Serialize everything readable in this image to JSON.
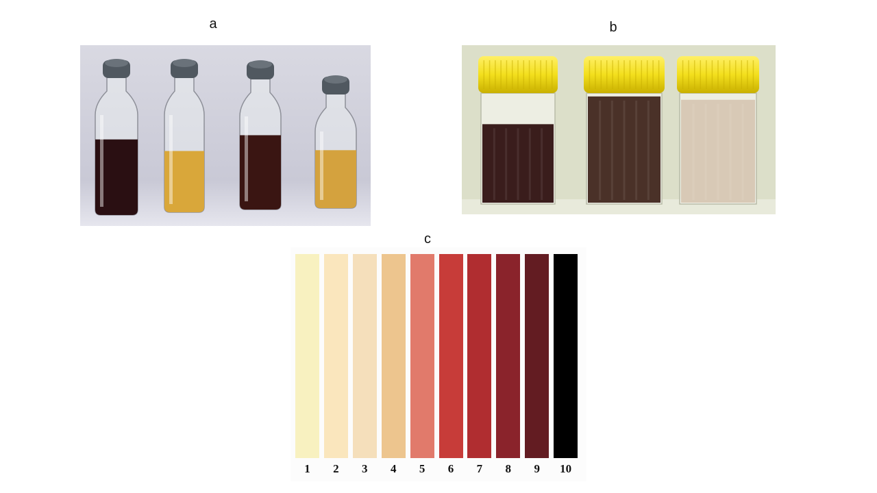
{
  "panels": {
    "a": {
      "label": "a"
    },
    "b": {
      "label": "b"
    },
    "c": {
      "label": "c"
    }
  },
  "photo_a": {
    "background": "#c9c9d6",
    "bottles": [
      {
        "liquid_color": "#2a0f12",
        "fill": 0.36
      },
      {
        "liquid_color": "#d9a73a",
        "fill": 0.3
      },
      {
        "liquid_color": "#3a1512",
        "fill": 0.38
      },
      {
        "liquid_color": "#d4a23e",
        "fill": 0.36
      }
    ]
  },
  "photo_b": {
    "background": "#dcdfc9",
    "cap_color": "#f3df1d",
    "jars": [
      {
        "liquid_color": "#3a1d1c",
        "fill": 0.72
      },
      {
        "liquid_color": "#4a3128",
        "fill": 0.97
      },
      {
        "liquid_color": "#d8c9b6",
        "fill": 0.94
      }
    ]
  },
  "color_scale": {
    "swatches": [
      {
        "number": "1",
        "color": "#f8f1c0"
      },
      {
        "number": "2",
        "color": "#fae6bd"
      },
      {
        "number": "3",
        "color": "#f5dfbb"
      },
      {
        "number": "4",
        "color": "#edc58e"
      },
      {
        "number": "5",
        "color": "#e17a6b"
      },
      {
        "number": "6",
        "color": "#c73c39"
      },
      {
        "number": "7",
        "color": "#b02d30"
      },
      {
        "number": "8",
        "color": "#8a232b"
      },
      {
        "number": "9",
        "color": "#631c22"
      },
      {
        "number": "10",
        "color": "#000000"
      }
    ]
  }
}
